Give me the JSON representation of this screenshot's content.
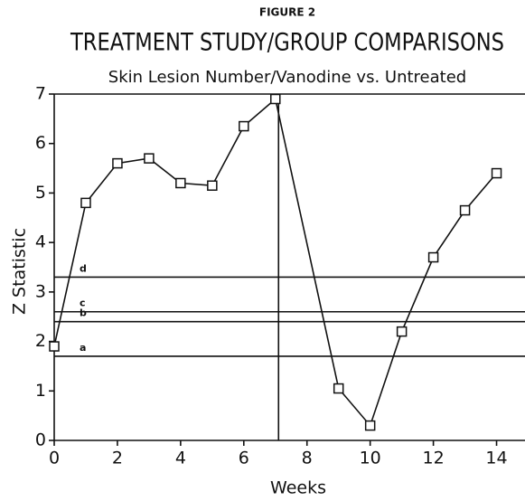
{
  "chart_data": {
    "type": "line",
    "figure_label": "FIGURE 2",
    "title": "TREATMENT STUDY/GROUP COMPARISONS",
    "subtitle": "Skin Lesion Number/Vanodine vs. Untreated",
    "xlabel": "Weeks",
    "ylabel": "Z Statistic",
    "x": [
      0,
      1,
      2,
      3,
      4,
      5,
      6,
      7,
      9,
      10,
      11,
      12,
      13,
      14
    ],
    "series": [
      {
        "name": "Vanodine vs. Untreated",
        "color": "#111111",
        "values": [
          1.9,
          4.8,
          5.6,
          5.7,
          5.2,
          5.15,
          6.35,
          6.9,
          1.05,
          0.3,
          2.2,
          3.7,
          4.65,
          5.4
        ]
      }
    ],
    "reference_lines": [
      {
        "label": "d",
        "value": 3.3
      },
      {
        "label": "c",
        "value": 2.6
      },
      {
        "label": "b",
        "value": 2.4
      },
      {
        "label": "a",
        "value": 1.7
      }
    ],
    "vertical_line": 7.1,
    "xlim": [
      0,
      14.9
    ],
    "ylim": [
      0,
      7
    ],
    "xticks": [
      0,
      2,
      4,
      6,
      8,
      10,
      12,
      14
    ],
    "yticks": [
      0,
      1,
      2,
      3,
      4,
      5,
      6,
      7
    ]
  }
}
